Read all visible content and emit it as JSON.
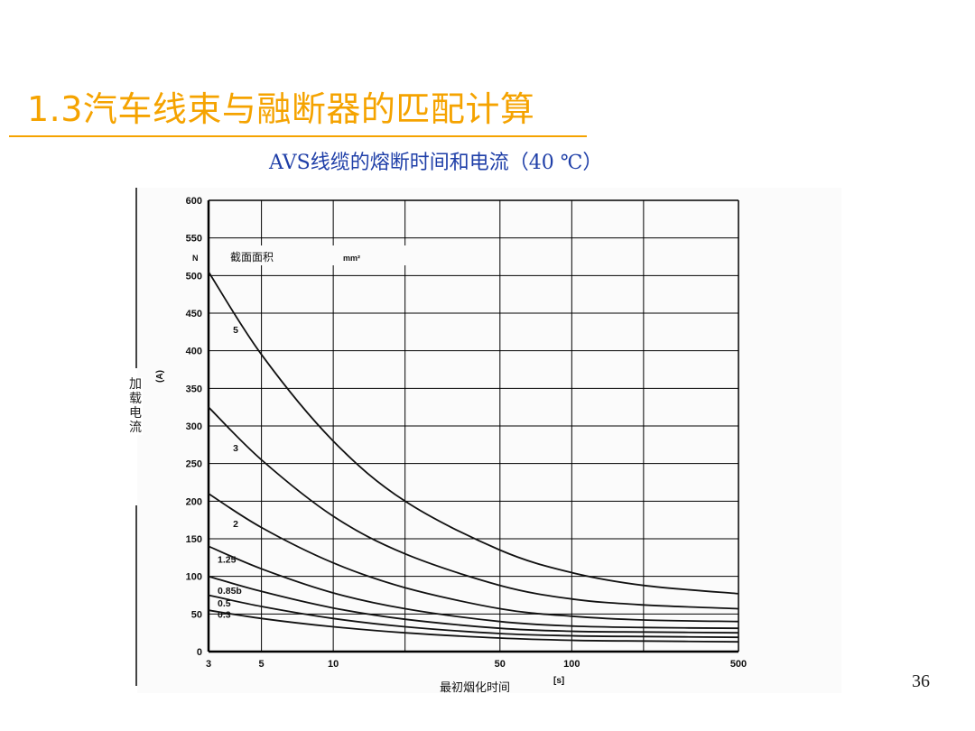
{
  "slide": {
    "title": "1.3汽车线束与融断器的匹配计算",
    "subtitle": "AVS线缆的熔断时间和电流（40 ℃）",
    "page_number": "36"
  },
  "colors": {
    "title": "#F5A300",
    "subtitle": "#1f3fa8",
    "curve": "#111111",
    "grid": "#000000"
  },
  "chart_data": {
    "type": "line",
    "title": "",
    "ylabel": "(A)",
    "ylabel_cn": "加载电流",
    "xlabel": "[s]",
    "xlabel_cn": "最初烟化时间",
    "legend_title": "截面面积",
    "legend_unit": "mm²",
    "y_corner_label": "N",
    "x_scale": "log",
    "xlim": [
      3,
      500
    ],
    "ylim": [
      0,
      600
    ],
    "x_ticks": [
      3,
      5,
      10,
      50,
      100,
      500
    ],
    "y_ticks": [
      0,
      50,
      100,
      150,
      200,
      250,
      300,
      350,
      400,
      450,
      500,
      550,
      600
    ],
    "grid": true,
    "series": [
      {
        "name": "5",
        "x": [
          3,
          5,
          10,
          20,
          50,
          100,
          200,
          500
        ],
        "y": [
          505,
          395,
          280,
          200,
          135,
          105,
          88,
          77
        ]
      },
      {
        "name": "3",
        "x": [
          3,
          5,
          10,
          20,
          50,
          100,
          200,
          500
        ],
        "y": [
          325,
          255,
          180,
          130,
          88,
          70,
          62,
          57
        ]
      },
      {
        "name": "2",
        "x": [
          3,
          5,
          10,
          20,
          50,
          100,
          200,
          500
        ],
        "y": [
          210,
          165,
          118,
          85,
          57,
          47,
          42,
          40
        ]
      },
      {
        "name": "1.25",
        "x": [
          3,
          5,
          10,
          20,
          50,
          100,
          200,
          500
        ],
        "y": [
          140,
          110,
          78,
          57,
          40,
          34,
          32,
          31
        ]
      },
      {
        "name": "0.85b",
        "x": [
          3,
          5,
          10,
          20,
          50,
          100,
          200,
          500
        ],
        "y": [
          100,
          80,
          58,
          43,
          31,
          27,
          26,
          25
        ]
      },
      {
        "name": "0.5",
        "x": [
          3,
          5,
          10,
          20,
          50,
          100,
          200,
          500
        ],
        "y": [
          75,
          60,
          44,
          33,
          24,
          21,
          20,
          19
        ]
      },
      {
        "name": "0.3",
        "x": [
          3,
          5,
          10,
          20,
          50,
          100,
          200,
          500
        ],
        "y": [
          55,
          44,
          33,
          25,
          18,
          15,
          14,
          13
        ]
      }
    ]
  }
}
